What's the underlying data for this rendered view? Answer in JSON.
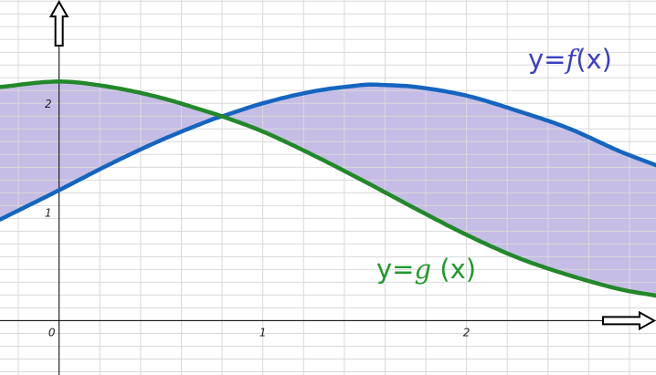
{
  "chart_data": {
    "type": "area",
    "xlim": [
      -0.29,
      2.93
    ],
    "ylim": [
      -0.5,
      2.95
    ],
    "grid": true,
    "x_ticks": [
      {
        "value": 0,
        "label": "0"
      },
      {
        "value": 1,
        "label": "1"
      },
      {
        "value": 2,
        "label": "2"
      }
    ],
    "y_ticks": [
      {
        "value": 1,
        "label": "1"
      },
      {
        "value": 2,
        "label": "2"
      }
    ],
    "series": [
      {
        "key": "f",
        "name": "y=f(x)",
        "label_parts": [
          "y=",
          "f",
          "(x)"
        ],
        "color": "#1565c0",
        "x": [
          -0.29,
          0,
          0.25,
          0.5,
          0.75,
          0.8,
          1.0,
          1.25,
          1.5,
          1.57,
          1.75,
          2.0,
          2.25,
          2.5,
          2.75,
          2.93
        ],
        "y": [
          0.93,
          1.2,
          1.44,
          1.66,
          1.85,
          1.88,
          2.0,
          2.11,
          2.17,
          2.17,
          2.15,
          2.07,
          1.93,
          1.77,
          1.56,
          1.43
        ]
      },
      {
        "key": "g",
        "name": "y=g(x)",
        "label_parts": [
          "y=",
          "g",
          " (x)"
        ],
        "color": "#22882a",
        "x": [
          -0.29,
          0,
          0.25,
          0.5,
          0.75,
          0.8,
          1.0,
          1.25,
          1.5,
          1.75,
          2.0,
          2.25,
          2.5,
          2.75,
          2.93
        ],
        "y": [
          2.15,
          2.2,
          2.15,
          2.05,
          1.91,
          1.88,
          1.74,
          1.52,
          1.28,
          1.03,
          0.79,
          0.58,
          0.42,
          0.29,
          0.23
        ]
      }
    ],
    "fill_between": {
      "series": [
        "f",
        "g"
      ],
      "color": "#c5bde6"
    }
  }
}
